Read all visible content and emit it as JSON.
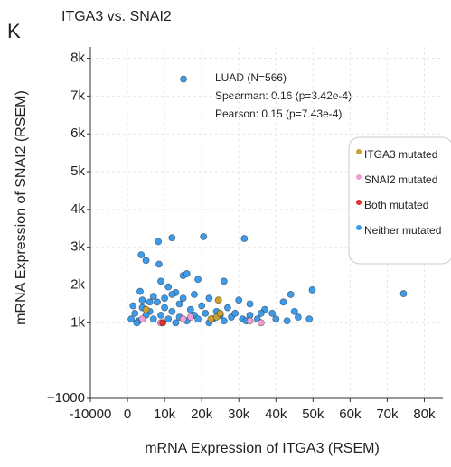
{
  "chart_data": {
    "type": "scatter",
    "panel_label": "K",
    "title": "ITGA3 vs. SNAI2",
    "x_label": "mRNA Expression of ITGA3 (RSEM)",
    "y_label": "mRNA Expression of SNAI2  (RSEM)",
    "annotations": [
      "LUAD (N=566)",
      "Spearman: 0.16 (p=3.42e-4)",
      "Pearson: 0.15 (p=7.43e-4)"
    ],
    "xlim": [
      -10000,
      85000
    ],
    "ylim": [
      -1000,
      8300
    ],
    "xticks": [
      {
        "value": -10000,
        "label": "-10000"
      },
      0,
      {
        "value": 10000,
        "label": "10k"
      },
      {
        "value": 20000,
        "label": "20k"
      },
      {
        "value": 30000,
        "label": "30k"
      },
      {
        "value": 40000,
        "label": "40k"
      },
      {
        "value": 50000,
        "label": "50k"
      },
      {
        "value": 60000,
        "label": "60k"
      },
      {
        "value": 70000,
        "label": "70k"
      },
      {
        "value": 80000,
        "label": "80k"
      }
    ],
    "yticks": [
      {
        "value": -1000,
        "label": "−1000"
      },
      {
        "value": 1000,
        "label": "1k"
      },
      {
        "value": 2000,
        "label": "2k"
      },
      {
        "value": 3000,
        "label": "3k"
      },
      {
        "value": 4000,
        "label": "4k"
      },
      {
        "value": 5000,
        "label": "5k"
      },
      {
        "value": 6000,
        "label": "6k"
      },
      {
        "value": 7000,
        "label": "7k"
      },
      {
        "value": 8000,
        "label": "8k"
      }
    ],
    "grid": true,
    "legend": "right",
    "series": [
      {
        "name": "ITGA3 mutated",
        "color": "#c9a032",
        "x": [
          5000,
          24500,
          24000,
          25000,
          22500
        ],
        "values": [
          1350,
          1600,
          1150,
          1250,
          1100
        ]
      },
      {
        "name": "SNAI2  mutated",
        "color": "#f19fd3",
        "x": [
          4000,
          9000,
          15000,
          17000,
          33000,
          36000
        ],
        "values": [
          1100,
          1000,
          1100,
          1150,
          1050,
          1000
        ]
      },
      {
        "name": "Both mutated",
        "color": "#e0302f",
        "x": [
          9500
        ],
        "values": [
          1000
        ]
      },
      {
        "name": "Neither mutated",
        "color": "#3d9be9",
        "x": [
          15100,
          20500,
          31500,
          3700,
          8300,
          12000,
          8500,
          5000,
          49800,
          74400,
          3400,
          9000,
          15000,
          16000,
          19000,
          26000,
          11000,
          4000,
          7000,
          13000,
          18000,
          22000,
          30000,
          33000,
          42000,
          44000,
          37000,
          39000,
          46000,
          49000,
          27000,
          24000,
          20000,
          17000,
          14000,
          10000,
          8000,
          6000,
          2000,
          1000,
          3000,
          5000,
          7000,
          9000,
          11000,
          12000,
          14000,
          16000,
          18000,
          19000,
          21000,
          23000,
          25000,
          26000,
          28000,
          29000,
          31000,
          33000,
          35000,
          36000,
          40000,
          43000,
          45000,
          4000,
          6000,
          10000,
          12000,
          15000,
          1500,
          2500,
          13000,
          22000,
          32000
        ],
        "values": [
          7450,
          3280,
          3230,
          2800,
          3150,
          3250,
          2550,
          2650,
          1870,
          1770,
          1830,
          2100,
          2250,
          2300,
          2150,
          2100,
          1950,
          1600,
          1700,
          1800,
          1750,
          1650,
          1600,
          1500,
          1550,
          1750,
          1350,
          1250,
          1150,
          1100,
          1400,
          1300,
          1450,
          1350,
          1500,
          1400,
          1550,
          1300,
          1250,
          1100,
          1050,
          1200,
          1100,
          1200,
          1100,
          1300,
          1150,
          1050,
          1200,
          1100,
          1250,
          1100,
          1200,
          1050,
          1150,
          1250,
          1100,
          1200,
          1100,
          1250,
          1100,
          1050,
          1300,
          1400,
          1550,
          1650,
          1750,
          1650,
          1450,
          1000,
          1000,
          1000,
          1050
        ]
      }
    ]
  }
}
